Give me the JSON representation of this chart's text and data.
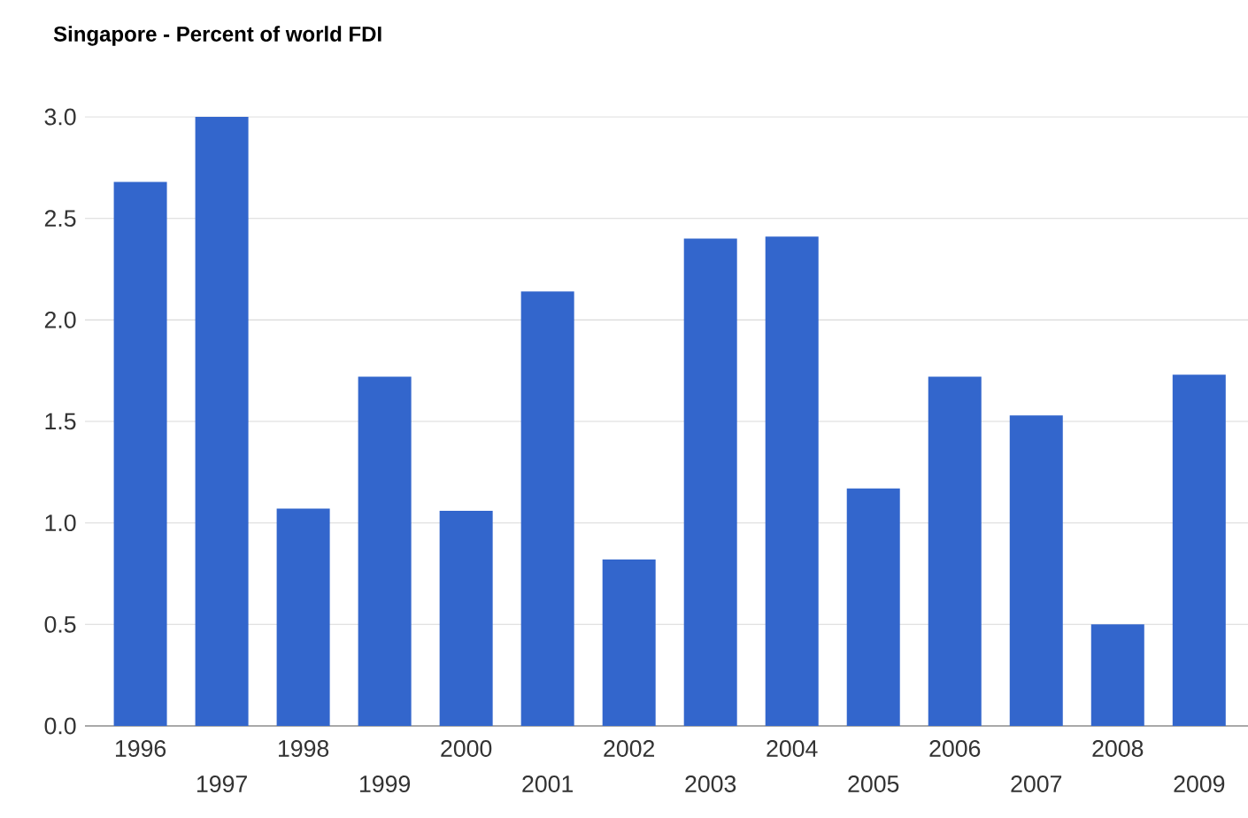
{
  "chart_data": {
    "type": "bar",
    "title": "Singapore - Percent of world FDI",
    "categories": [
      "1996",
      "1997",
      "1998",
      "1999",
      "2000",
      "2001",
      "2002",
      "2003",
      "2004",
      "2005",
      "2006",
      "2007",
      "2008",
      "2009"
    ],
    "values": [
      2.68,
      3.0,
      1.07,
      1.72,
      1.06,
      2.14,
      0.82,
      2.4,
      2.41,
      1.17,
      1.72,
      1.53,
      0.5,
      1.73
    ],
    "color": "#3366cc",
    "ylim": [
      0,
      3.0
    ],
    "yticks": [
      {
        "value": 0,
        "label": "0.0"
      },
      {
        "value": 0.5,
        "label": "0.5"
      },
      {
        "value": 1.0,
        "label": "1.0"
      },
      {
        "value": 1.5,
        "label": "1.5"
      },
      {
        "value": 2.0,
        "label": "2.0"
      },
      {
        "value": 2.5,
        "label": "2.5"
      },
      {
        "value": 3.0,
        "label": "3.0"
      }
    ],
    "grid": "y"
  }
}
